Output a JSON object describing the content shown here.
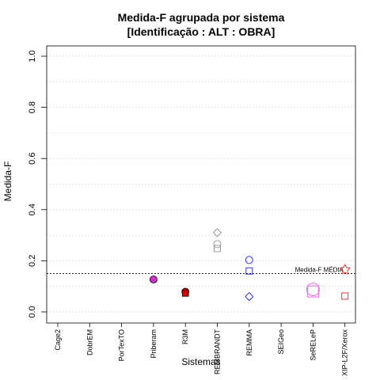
{
  "chart_data": {
    "type": "scatter",
    "title": "Medida-F agrupada por sistema",
    "subtitle": "[Identificação : ALT : OBRA]",
    "xlabel": "Sistemas",
    "ylabel": "Medida-F",
    "ylim": [
      0,
      1
    ],
    "yticks": [
      "0.0",
      "0.2",
      "0.4",
      "0.6",
      "0.8",
      "1.0"
    ],
    "grid": "horizontal dotted",
    "categories": [
      "Cage2",
      "DobrEM",
      "PorTexTO",
      "Priberam",
      "R3M",
      "REMBRANDT",
      "REMMA",
      "SEIGeo",
      "SeRELeP",
      "XIP-L2F/Xerox"
    ],
    "reference_line": {
      "label": "Medida-F MÉDIA",
      "value": 0.15
    },
    "points": [
      {
        "category": "Priberam",
        "y": 0.127,
        "shape": "circle-filled",
        "color": "#cc33cc"
      },
      {
        "category": "R3M",
        "y": 0.079,
        "shape": "circle-filled",
        "color": "#cc0000"
      },
      {
        "category": "R3M",
        "y": 0.073,
        "shape": "square-filled",
        "color": "#cc0000"
      },
      {
        "category": "REMBRANDT",
        "y": 0.31,
        "shape": "diamond",
        "color": "#999999"
      },
      {
        "category": "REMBRANDT",
        "y": 0.265,
        "shape": "circle",
        "color": "#999999"
      },
      {
        "category": "REMBRANDT",
        "y": 0.248,
        "shape": "square",
        "color": "#999999"
      },
      {
        "category": "REMMA",
        "y": 0.203,
        "shape": "circle",
        "color": "#3333ee"
      },
      {
        "category": "REMMA",
        "y": 0.16,
        "shape": "square",
        "color": "#3333ee"
      },
      {
        "category": "REMMA",
        "y": 0.06,
        "shape": "diamond",
        "color": "#3333ee"
      },
      {
        "category": "SeRELeP",
        "y": 0.088,
        "shape": "circle-large",
        "color": "#ee66ee"
      },
      {
        "category": "SeRELeP",
        "y": 0.08,
        "shape": "square-large",
        "color": "#ee66ee"
      },
      {
        "category": "XIP-L2F/Xerox",
        "y": 0.165,
        "shape": "star",
        "color": "#ee3333"
      },
      {
        "category": "XIP-L2F/Xerox",
        "y": 0.062,
        "shape": "square",
        "color": "#ee3333"
      }
    ]
  }
}
